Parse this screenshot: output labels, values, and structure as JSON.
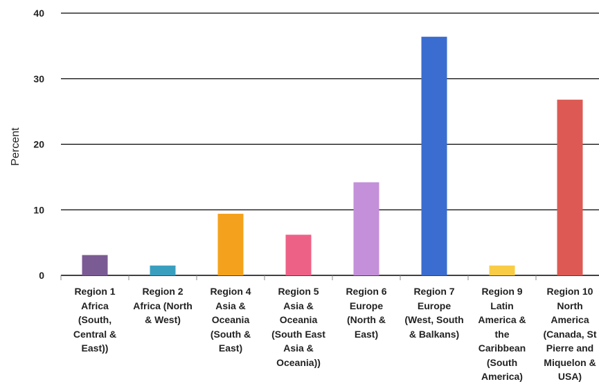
{
  "chart_data": {
    "type": "bar",
    "ylabel": "Percent",
    "ylim": [
      0,
      40
    ],
    "yticks": [
      "0",
      "10",
      "20",
      "30",
      "40"
    ],
    "grid": true,
    "categories": [
      "Region 1\nAfrica\n(South,\nCentral &\nEast))",
      "Region 2\nAfrica (North\n& West)",
      "Region 4\nAsia &\nOceania\n(South &\nEast)",
      "Region 5\nAsia &\nOceania\n(South East\nAsia &\nOceania))",
      "Region 6\nEurope\n(North &\nEast)",
      "Region 7\nEurope\n(West, South\n& Balkans)",
      "Region 9\nLatin\nAmerica &\nthe\nCaribbean\n(South\nAmerica)",
      "Region 10\nNorth\nAmerica\n(Canada, St\nPierre and\nMiquelon &\nUSA)"
    ],
    "values": [
      3.1,
      1.5,
      9.4,
      6.2,
      14.2,
      36.4,
      1.5,
      26.8
    ],
    "colors": [
      "#7b5b93",
      "#3a9fbf",
      "#f4a21d",
      "#ee6186",
      "#c390d9",
      "#3b6ccf",
      "#f9cc45",
      "#dc5a53"
    ]
  }
}
